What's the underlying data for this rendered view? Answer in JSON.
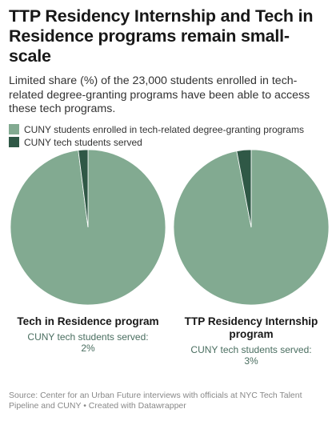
{
  "title": "TTP Residency Internship and Tech in Residence programs remain small-scale",
  "subtitle": "Limited share (%) of the 23,000 students enrolled in tech-related degree-granting programs have been able to access these tech programs.",
  "legend": [
    {
      "label": "CUNY students enrolled in tech-related degree-granting programs",
      "color": "#82aa91"
    },
    {
      "label": "CUNY tech students served",
      "color": "#2f5846"
    }
  ],
  "chart_data": [
    {
      "type": "pie",
      "title": "Tech in Residence program",
      "label": "CUNY tech students served:",
      "value_text": "2%",
      "slices": [
        {
          "name": "CUNY students enrolled in tech-related degree-granting programs",
          "value": 98,
          "color": "#82aa91"
        },
        {
          "name": "CUNY tech students served",
          "value": 2,
          "color": "#2f5846"
        }
      ]
    },
    {
      "type": "pie",
      "title": "TTP Residency Internship program",
      "label": "CUNY tech students served:",
      "value_text": "3%",
      "slices": [
        {
          "name": "CUNY students enrolled in tech-related degree-granting programs",
          "value": 97,
          "color": "#82aa91"
        },
        {
          "name": "CUNY tech students served",
          "value": 3,
          "color": "#2f5846"
        }
      ]
    }
  ],
  "footer": "Source: Center for an Urban Future interviews with officials at NYC Tech Talent Pipeline and CUNY • Created with Datawrapper"
}
